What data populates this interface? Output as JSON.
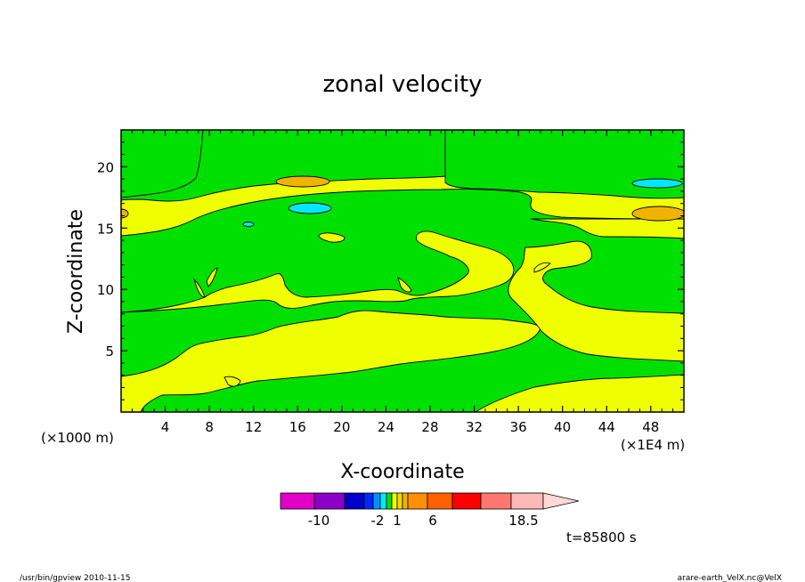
{
  "chart_data": {
    "type": "contour",
    "title": "zonal velocity",
    "xlabel": "X-coordinate",
    "ylabel": "Z-coordinate",
    "x_unit_left": "(×1000 m)",
    "x_unit_right": "(×1E4 m)",
    "xlim": [
      0,
      51
    ],
    "ylim": [
      0,
      23
    ],
    "xticks": [
      "4",
      "8",
      "12",
      "16",
      "20",
      "24",
      "28",
      "32",
      "36",
      "40",
      "44",
      "48"
    ],
    "yticks": [
      "5",
      "10",
      "15",
      "20"
    ],
    "background_level_color": "#00e000",
    "filled_regions": [
      {
        "name": "pos-band-bottom",
        "color": "#f0ff00"
      },
      {
        "name": "pos-band-mid",
        "color": "#f0ff00"
      },
      {
        "name": "pos-band-upper",
        "color": "#f0ff00"
      },
      {
        "name": "pos-band-top",
        "color": "#f0ff00"
      },
      {
        "name": "pos-upper-right",
        "color": "#f0ff00"
      },
      {
        "name": "orange-cell-top",
        "color": "#f0b400"
      },
      {
        "name": "orange-cell-right",
        "color": "#f0b400"
      },
      {
        "name": "cyan-cell-left",
        "color": "#00e8ff"
      },
      {
        "name": "cyan-cell-right",
        "color": "#00e8ff"
      },
      {
        "name": "cyan-cell-small",
        "color": "#00e8ff"
      }
    ],
    "colorbar": {
      "colors": [
        "#e000c8",
        "#8c00c8",
        "#0000c8",
        "#0028ff",
        "#0090ff",
        "#00e8ff",
        "#00e000",
        "#f0ff00",
        "#f0d800",
        "#f0b400",
        "#ff9000",
        "#ff6000",
        "#ff0000",
        "#ff7870",
        "#ffb8b8",
        "#ffd8d8"
      ],
      "labels": [
        "-10",
        "-2",
        "1",
        "6",
        "18.5"
      ]
    },
    "time_label": "t=85800 s"
  },
  "footer": {
    "left": "/usr/bin/gpview  2010-11-15",
    "right": "arare-earth_VelX.nc@VelX"
  }
}
